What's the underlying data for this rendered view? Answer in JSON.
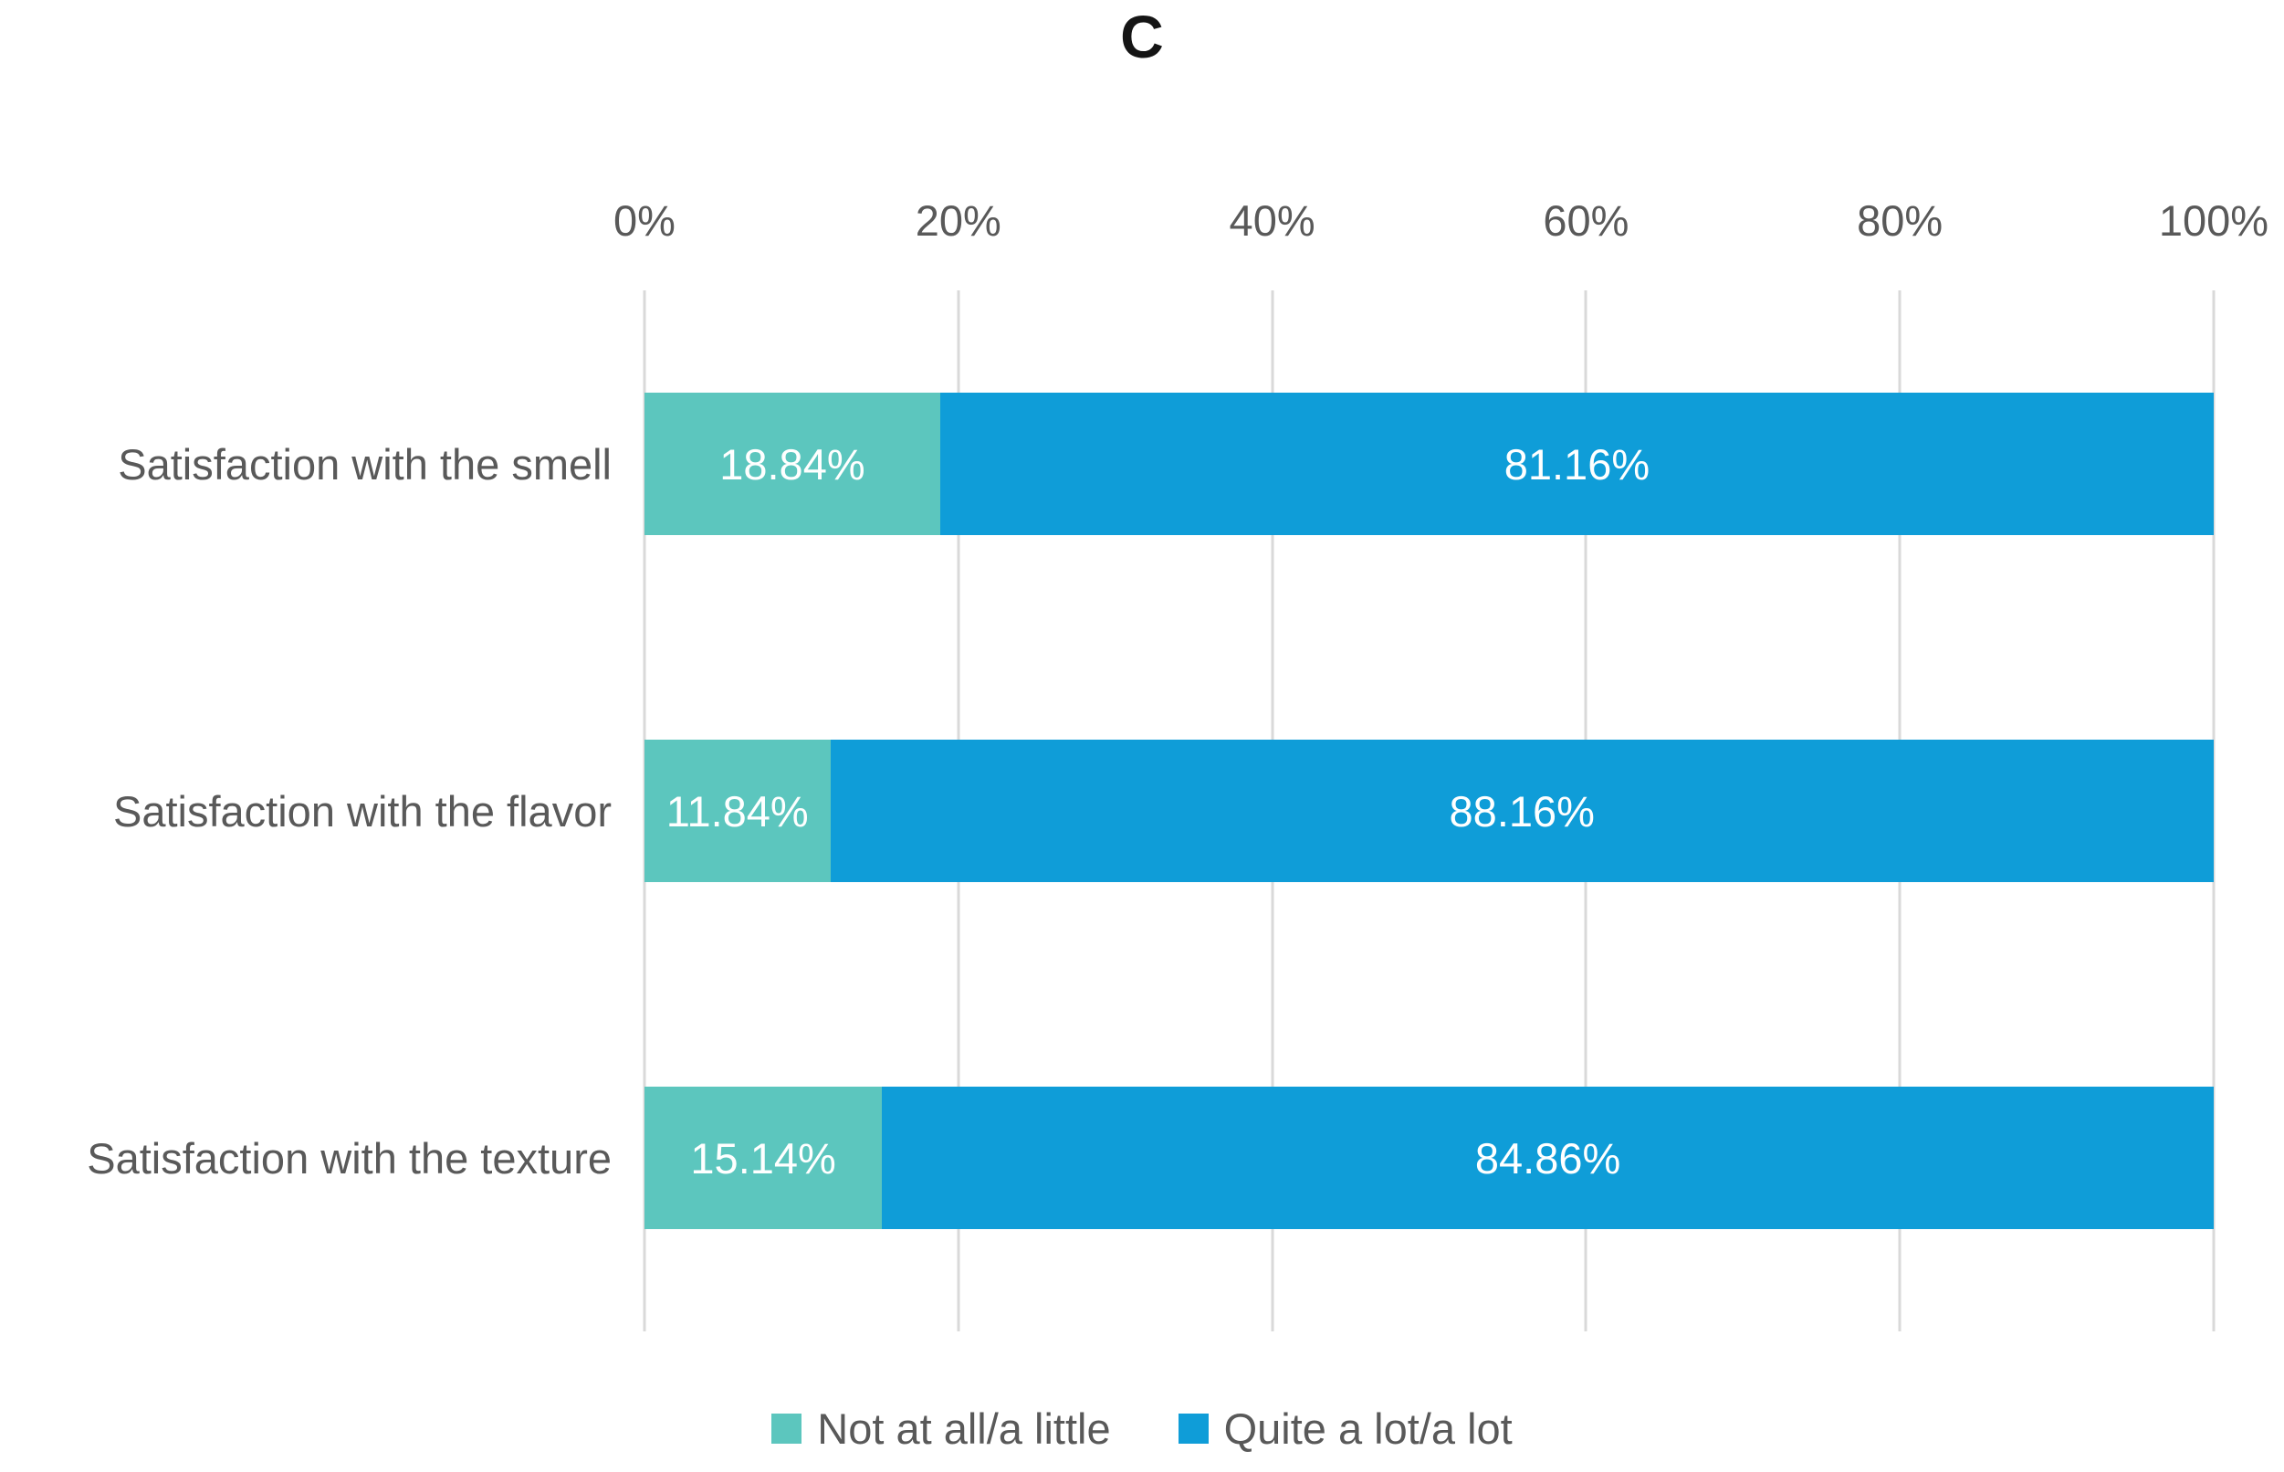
{
  "title": "C",
  "colors": {
    "series_not_at_all": "#5CC6BE",
    "series_quite_a_lot": "#0F9DD8",
    "gridline": "#D9D9D9",
    "axis_text": "#595959",
    "category_text": "#595959",
    "bar_label_text": "#FFFFFF",
    "legend_text": "#595959",
    "title_text": "#151515",
    "background": "#FFFFFF"
  },
  "chart_data": {
    "type": "bar",
    "orientation": "horizontal",
    "stacked": true,
    "title": "C",
    "xlabel": "",
    "ylabel": "",
    "categories": [
      "Satisfaction with the smell",
      "Satisfaction with the flavor",
      "Satisfaction with the texture"
    ],
    "series": [
      {
        "name": "Not at all/a little",
        "color": "#5CC6BE",
        "values": [
          18.84,
          11.84,
          15.14
        ],
        "labels": [
          "18.84%",
          "11.84%",
          "15.14%"
        ]
      },
      {
        "name": "Quite a lot/a lot",
        "color": "#0F9DD8",
        "values": [
          81.16,
          88.16,
          84.86
        ],
        "labels": [
          "81.16%",
          "88.16%",
          "84.86%"
        ]
      }
    ],
    "x_axis": {
      "position": "top",
      "min": 0,
      "max": 100,
      "ticks": [
        "0%",
        "20%",
        "40%",
        "60%",
        "80%",
        "100%"
      ]
    },
    "grid": true,
    "legend": {
      "position": "bottom",
      "entries": [
        "Not at all/a little",
        "Quite a lot/a lot"
      ]
    }
  }
}
